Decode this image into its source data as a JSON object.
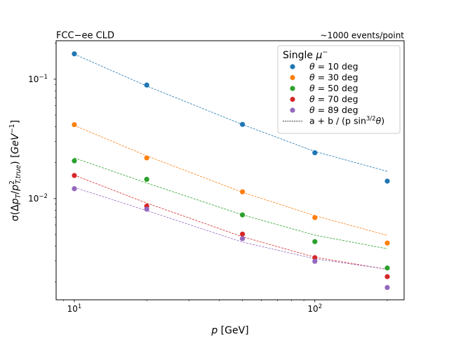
{
  "chart_data": {
    "type": "scatter",
    "title_left": "FCC−ee CLD",
    "title_right": "~1000 events/point",
    "xlabel": "p [GeV]",
    "ylabel": "σ(Δp_T/p²_T,true) [GeV⁻¹]",
    "xscale": "log",
    "yscale": "log",
    "xlim": [
      8.4,
      235
    ],
    "ylim": [
      0.00142,
      0.21
    ],
    "x_ticks": [
      10,
      100
    ],
    "y_ticks": [
      0.01,
      0.1
    ],
    "legend": {
      "title": "Single μ⁻",
      "placement": "upper right",
      "fit_label": "a + b / (p sin³ᐟ²θ)"
    },
    "series": [
      {
        "name": "θ = 10 deg",
        "color": "#1f77b4",
        "x": [
          10,
          20,
          50,
          100,
          200
        ],
        "y": [
          0.163,
          0.0893,
          0.0418,
          0.0242,
          0.014
        ],
        "fit": [
          0.162,
          0.0877,
          0.0417,
          0.0248,
          0.0169
        ]
      },
      {
        "name": "θ = 30 deg",
        "color": "#ff7f0e",
        "x": [
          10,
          20,
          50,
          100,
          200
        ],
        "y": [
          0.0416,
          0.0219,
          0.0114,
          0.00693,
          0.00424
        ],
        "fit": [
          0.041,
          0.0228,
          0.0113,
          0.00719,
          0.00492
        ]
      },
      {
        "name": "θ = 50 deg",
        "color": "#2ca02c",
        "x": [
          10,
          20,
          50,
          100,
          200
        ],
        "y": [
          0.0207,
          0.0145,
          0.0073,
          0.00436,
          0.00262
        ],
        "fit": [
          0.0219,
          0.0135,
          0.00731,
          0.00494,
          0.0038
        ]
      },
      {
        "name": "θ = 70 deg",
        "color": "#d62728",
        "x": [
          10,
          20,
          50,
          100,
          200
        ],
        "y": [
          0.0156,
          0.00865,
          0.00504,
          0.0032,
          0.00222
        ],
        "fit": [
          0.0157,
          0.00917,
          0.00479,
          0.00323,
          0.00255
        ]
      },
      {
        "name": "θ = 89 deg",
        "color": "#9467bd",
        "x": [
          10,
          20,
          50,
          100,
          200
        ],
        "y": [
          0.0121,
          0.00815,
          0.00462,
          0.00298,
          0.0018
        ],
        "fit": [
          0.0124,
          0.00793,
          0.00432,
          0.00313,
          0.00256
        ]
      }
    ],
    "fit_color": "#000000"
  }
}
